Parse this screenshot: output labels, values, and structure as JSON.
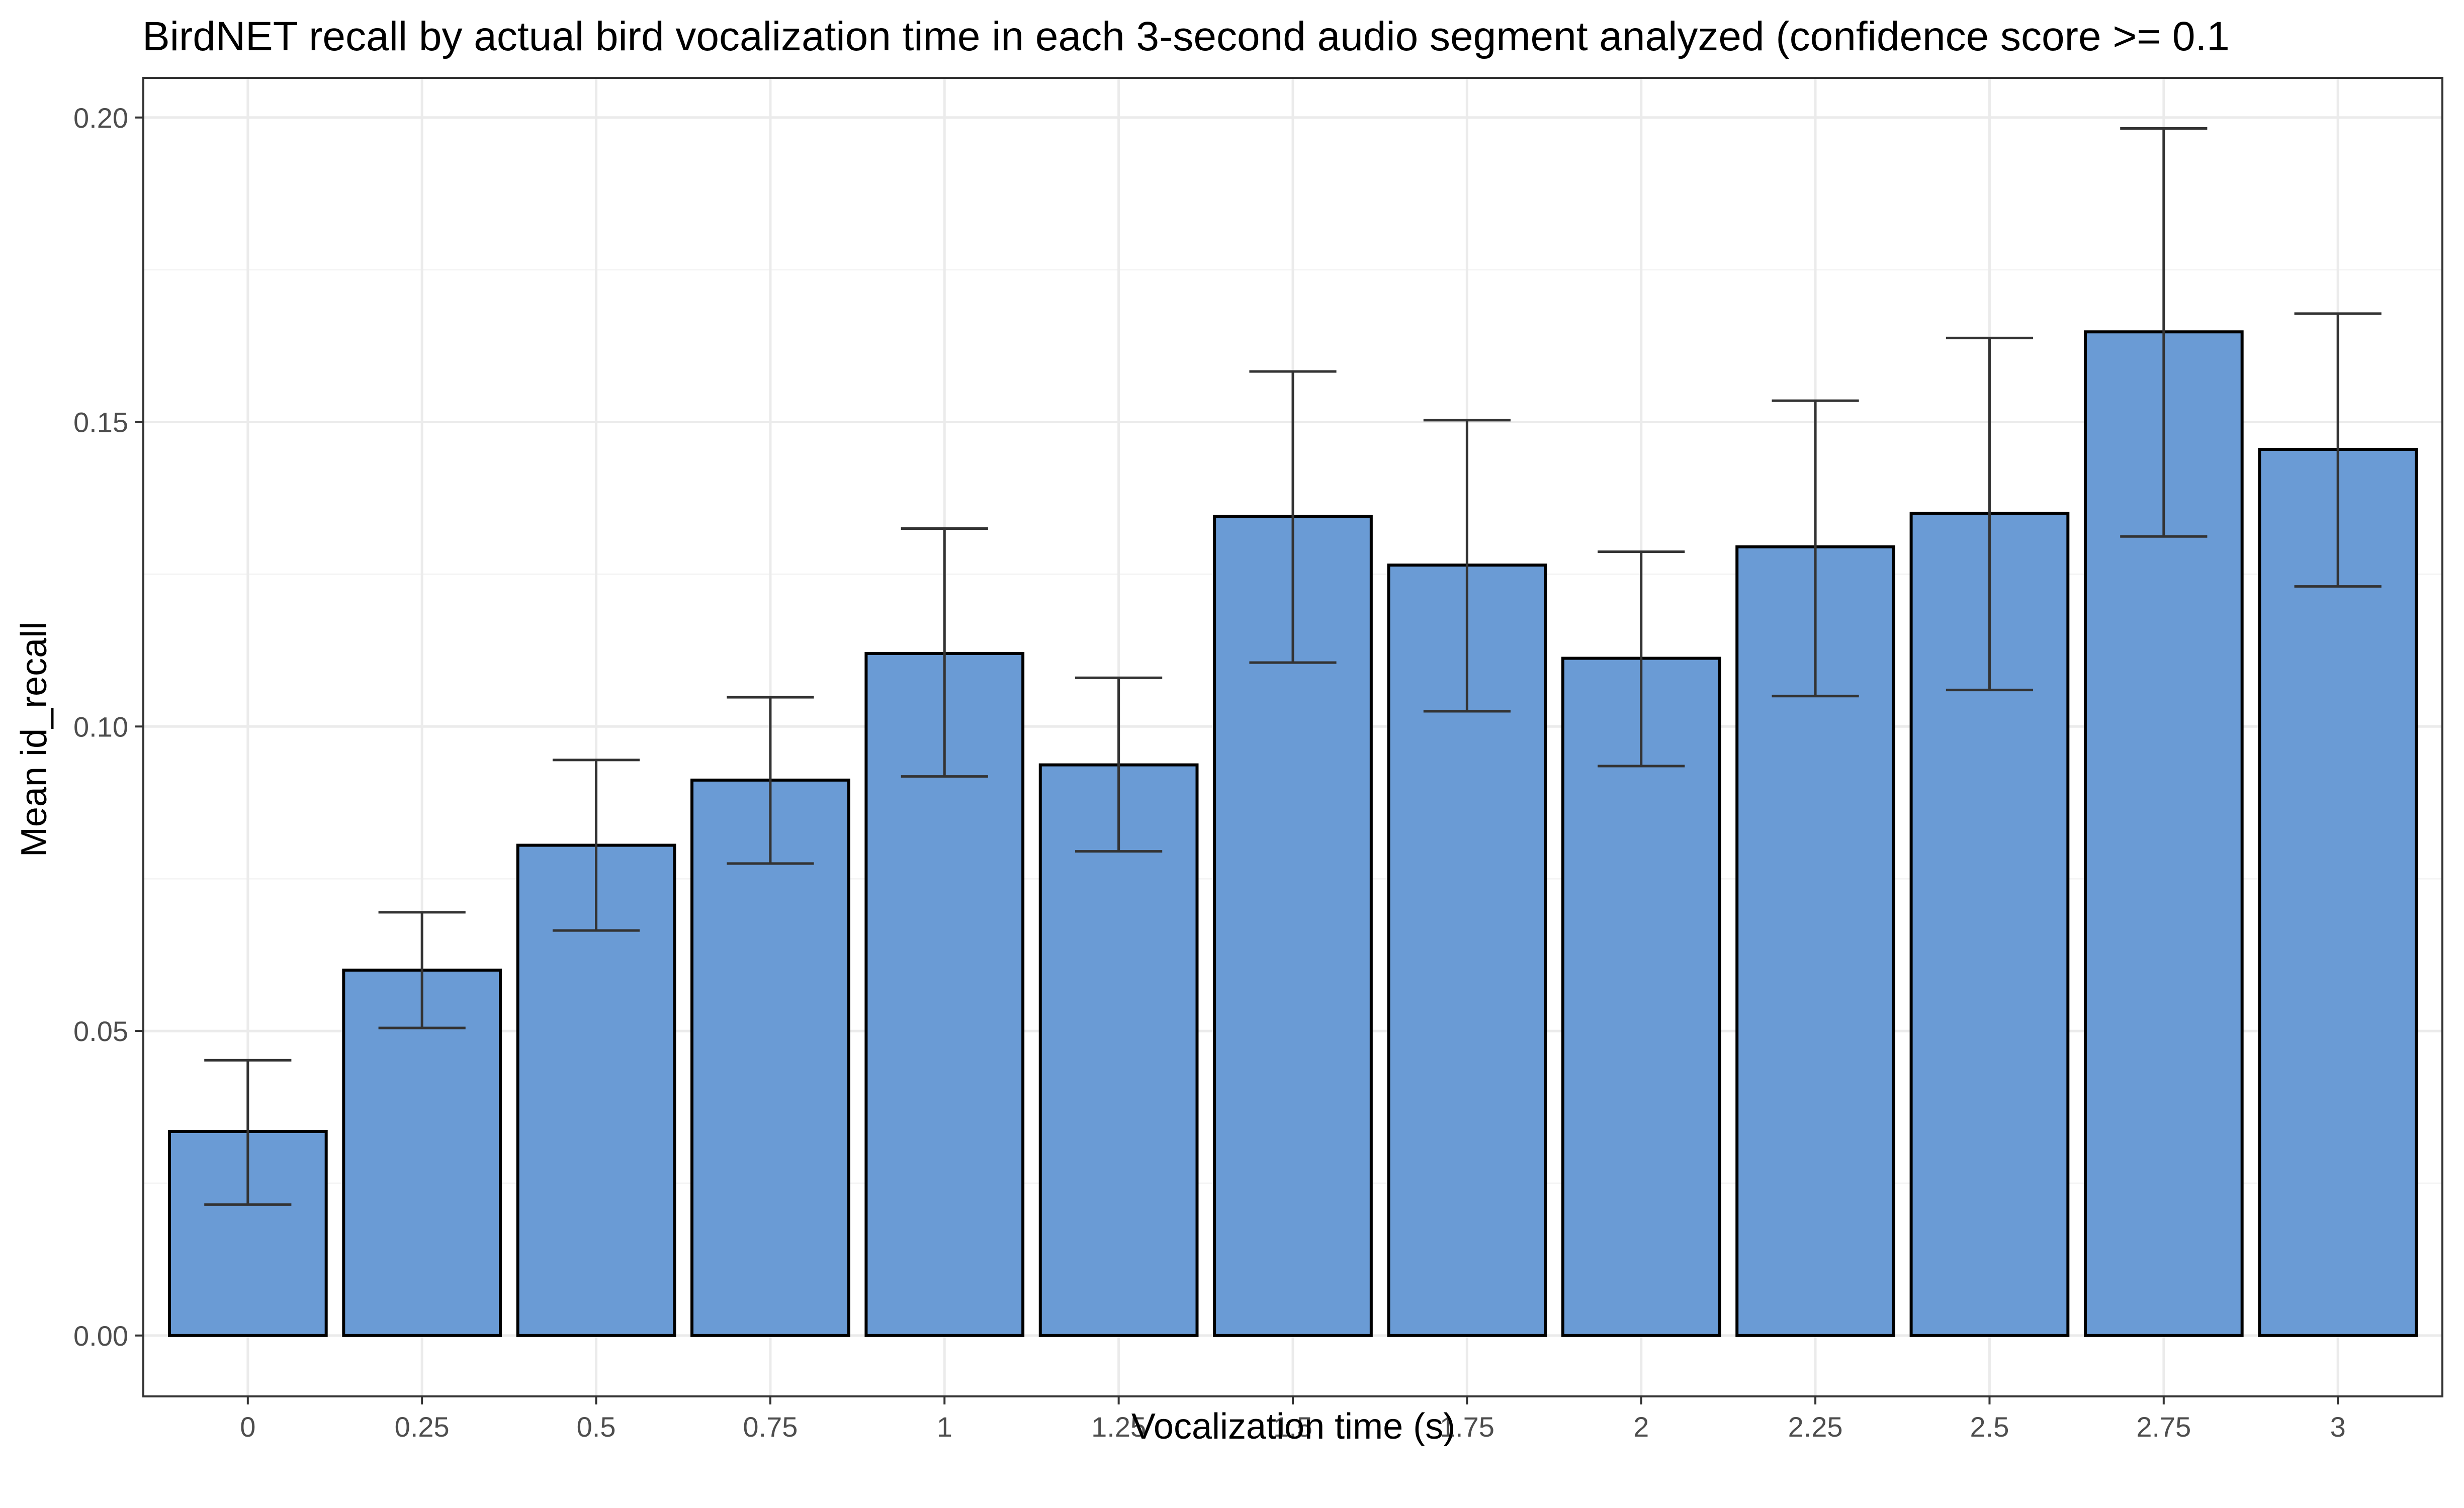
{
  "chart_data": {
    "type": "bar",
    "title": "BirdNET recall by actual bird vocalization time in each 3-second audio segment analyzed (confidence score >= 0.1",
    "xlabel": "Vocalization time (s)",
    "ylabel": "Mean id_recall",
    "categories": [
      "0",
      "0.25",
      "0.5",
      "0.75",
      "1",
      "1.25",
      "1.5",
      "1.75",
      "2",
      "2.25",
      "2.5",
      "2.75",
      "3"
    ],
    "values": [
      0.0335,
      0.06,
      0.0805,
      0.0912,
      0.112,
      0.0937,
      0.1345,
      0.1265,
      0.1112,
      0.1295,
      0.135,
      0.1648,
      0.1455
    ],
    "error_low": [
      0.0215,
      0.0505,
      0.0665,
      0.0775,
      0.0918,
      0.0795,
      0.1105,
      0.1025,
      0.0935,
      0.105,
      0.106,
      0.1312,
      0.123
    ],
    "error_high": [
      0.0452,
      0.0695,
      0.0945,
      0.1048,
      0.1325,
      0.108,
      0.1583,
      0.1503,
      0.1287,
      0.1535,
      0.1638,
      0.1982,
      0.1678
    ],
    "ylim": [
      -0.01,
      0.2065
    ],
    "yticks": [
      0.0,
      0.05,
      0.1,
      0.15,
      0.2
    ],
    "ytick_labels": [
      "0.00",
      "0.05",
      "0.10",
      "0.15",
      "0.20"
    ],
    "grid": true,
    "legend": "none",
    "colors": {
      "bar_fill": "#6A9BD5",
      "bar_stroke": "#000000",
      "error_bar": "#333333",
      "grid_major": "#EBEBEB",
      "grid_minor": "#F4F4F4",
      "panel_border": "#333333"
    }
  }
}
